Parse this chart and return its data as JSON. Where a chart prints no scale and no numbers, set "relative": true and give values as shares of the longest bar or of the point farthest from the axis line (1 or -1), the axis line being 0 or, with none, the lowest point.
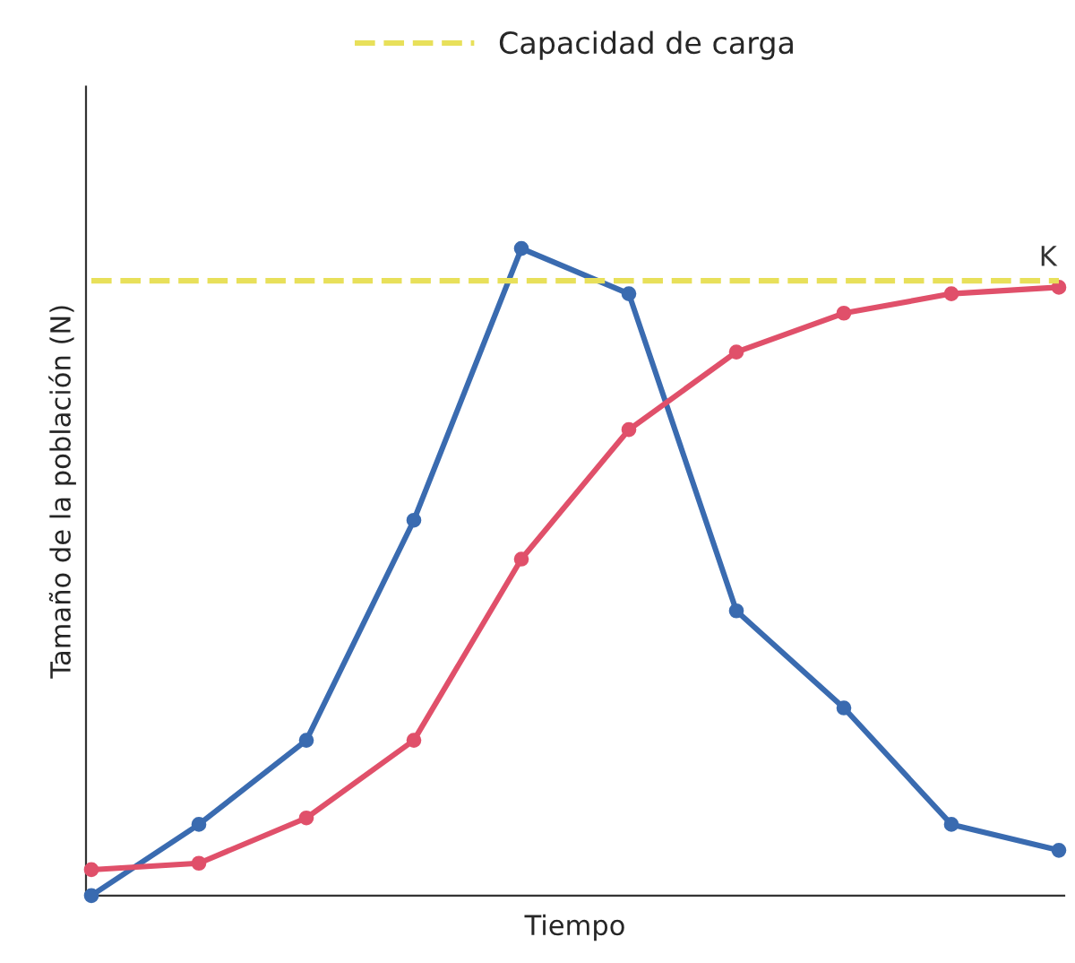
{
  "chart_data": {
    "type": "line",
    "relative": true,
    "xlabel": "Tiempo",
    "ylabel": "Tamaño de la población (N)",
    "categories": [
      null,
      null,
      null,
      null,
      null,
      null,
      null,
      null,
      null,
      null
    ],
    "series": [
      {
        "color": "#3a6bb0",
        "values": [
          0.0,
          0.11,
          0.24,
          0.58,
          1.0,
          0.93,
          0.44,
          0.29,
          0.11,
          0.07
        ]
      },
      {
        "color": "#e0506a",
        "values": [
          0.04,
          0.05,
          0.12,
          0.24,
          0.52,
          0.72,
          0.84,
          0.9,
          0.93,
          0.94
        ]
      },
      {
        "name": "Capacidad de carga",
        "color": "#e8e05a",
        "line_style": "dashed",
        "marker": "none",
        "values": [
          0.95,
          0.95,
          0.95,
          0.95,
          0.95,
          0.95,
          0.95,
          0.95,
          0.95,
          0.95
        ]
      }
    ],
    "annotations": [
      {
        "text": "K",
        "y": 0.95
      }
    ],
    "marker": "circle",
    "legend": "top",
    "grid": false
  }
}
